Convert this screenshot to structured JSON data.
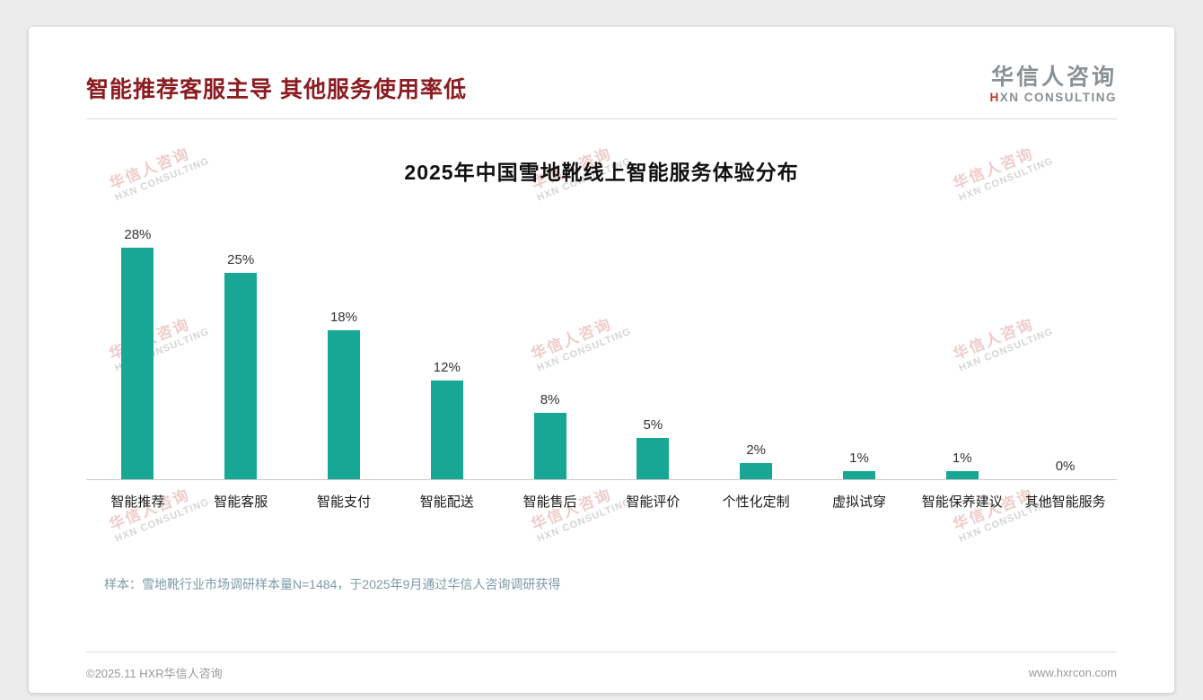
{
  "header": {
    "title": "智能推荐客服主导 其他服务使用率低",
    "logo": {
      "name": "华信人咨询",
      "sub_accent": "H",
      "sub_rest": "XN CONSULTING"
    }
  },
  "watermark": {
    "line1": "华信人咨询",
    "line2": "HXN CONSULTING"
  },
  "chart_data": {
    "type": "bar",
    "title": "2025年中国雪地靴线上智能服务体验分布",
    "categories": [
      "智能推荐",
      "智能客服",
      "智能支付",
      "智能配送",
      "智能售后",
      "智能评价",
      "个性化定制",
      "虚拟试穿",
      "智能保养建议",
      "其他智能服务"
    ],
    "values": [
      28,
      25,
      18,
      12,
      8,
      5,
      2,
      1,
      1,
      0
    ],
    "value_labels": [
      "28%",
      "25%",
      "18%",
      "12%",
      "8%",
      "5%",
      "2%",
      "1%",
      "1%",
      "0%"
    ],
    "bar_color": "#18a795",
    "xlabel": "",
    "ylabel": "",
    "ylim": [
      0,
      30
    ],
    "grid": false,
    "legend": "none"
  },
  "footnote": "样本：雪地靴行业市场调研样本量N=1484，于2025年9月通过华信人咨询调研获得",
  "footer": {
    "left": "©2025.11 HXR华信人咨询",
    "right": "www.hxrcon.com"
  }
}
